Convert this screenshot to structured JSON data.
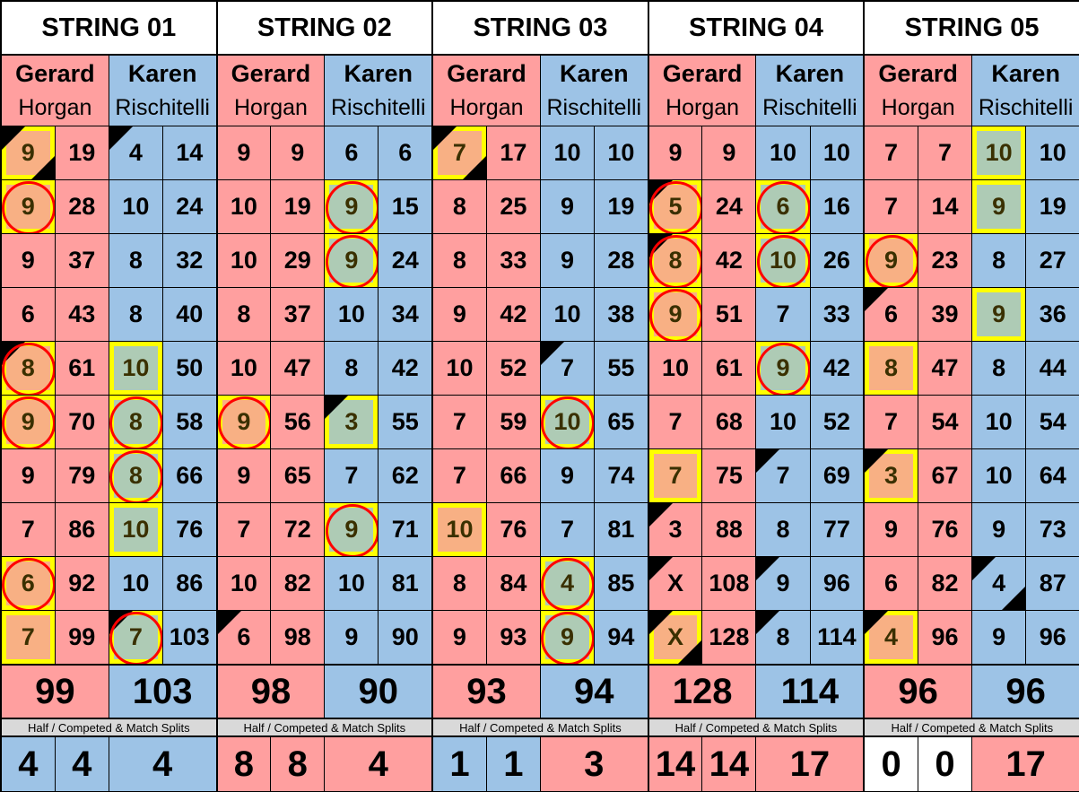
{
  "colors": {
    "player1": "#ff9f9f",
    "player2": "#9dc3e6",
    "highlight_border": "#ffff00",
    "highlight_fill_p1": "#f8b084",
    "highlight_fill_p2": "#aecbb5",
    "circle": "#ff0000"
  },
  "mark_legend": {
    "h": "yellow-highlight",
    "c": "red-circle",
    "t": "top-left-black-triangle",
    "b": "bottom-right-black-triangle"
  },
  "split_label": "Half / Competed & Match Splits",
  "strings": [
    {
      "title": "STRING 01",
      "p1": {
        "first": "Gerard",
        "last": "Horgan"
      },
      "p2": {
        "first": "Karen",
        "last": "Rischitelli"
      },
      "rows": [
        [
          {
            "v": "9",
            "m": "htb"
          },
          {
            "v": "19"
          },
          {
            "v": "4",
            "m": "t"
          },
          {
            "v": "14"
          }
        ],
        [
          {
            "v": "9",
            "m": "hc"
          },
          {
            "v": "28"
          },
          {
            "v": "10"
          },
          {
            "v": "24"
          }
        ],
        [
          {
            "v": "9"
          },
          {
            "v": "37"
          },
          {
            "v": "8"
          },
          {
            "v": "32"
          }
        ],
        [
          {
            "v": "6"
          },
          {
            "v": "43"
          },
          {
            "v": "8"
          },
          {
            "v": "40"
          }
        ],
        [
          {
            "v": "8",
            "m": "htc"
          },
          {
            "v": "61"
          },
          {
            "v": "10",
            "m": "h"
          },
          {
            "v": "50"
          }
        ],
        [
          {
            "v": "9",
            "m": "hc"
          },
          {
            "v": "70"
          },
          {
            "v": "8",
            "m": "hc"
          },
          {
            "v": "58"
          }
        ],
        [
          {
            "v": "9"
          },
          {
            "v": "79"
          },
          {
            "v": "8",
            "m": "hc"
          },
          {
            "v": "66"
          }
        ],
        [
          {
            "v": "7"
          },
          {
            "v": "86"
          },
          {
            "v": "10",
            "m": "h"
          },
          {
            "v": "76"
          }
        ],
        [
          {
            "v": "6",
            "m": "hc"
          },
          {
            "v": "92"
          },
          {
            "v": "10"
          },
          {
            "v": "86"
          }
        ],
        [
          {
            "v": "7",
            "m": "h"
          },
          {
            "v": "99"
          },
          {
            "v": "7",
            "m": "htc"
          },
          {
            "v": "103"
          }
        ]
      ],
      "totals": [
        "99",
        "103"
      ],
      "splits": [
        {
          "v": "4",
          "c": "b"
        },
        {
          "v": "4",
          "c": "b"
        },
        {
          "v": "4",
          "c": "b"
        }
      ]
    },
    {
      "title": "STRING 02",
      "p1": {
        "first": "Gerard",
        "last": "Horgan"
      },
      "p2": {
        "first": "Karen",
        "last": "Rischitelli"
      },
      "rows": [
        [
          {
            "v": "9"
          },
          {
            "v": "9"
          },
          {
            "v": "6"
          },
          {
            "v": "6"
          }
        ],
        [
          {
            "v": "10"
          },
          {
            "v": "19"
          },
          {
            "v": "9",
            "m": "hc"
          },
          {
            "v": "15"
          }
        ],
        [
          {
            "v": "10"
          },
          {
            "v": "29"
          },
          {
            "v": "9",
            "m": "hc"
          },
          {
            "v": "24"
          }
        ],
        [
          {
            "v": "8"
          },
          {
            "v": "37"
          },
          {
            "v": "10"
          },
          {
            "v": "34"
          }
        ],
        [
          {
            "v": "10"
          },
          {
            "v": "47"
          },
          {
            "v": "8"
          },
          {
            "v": "42"
          }
        ],
        [
          {
            "v": "9",
            "m": "hc"
          },
          {
            "v": "56"
          },
          {
            "v": "3",
            "m": "ht"
          },
          {
            "v": "55"
          }
        ],
        [
          {
            "v": "9"
          },
          {
            "v": "65"
          },
          {
            "v": "7"
          },
          {
            "v": "62"
          }
        ],
        [
          {
            "v": "7"
          },
          {
            "v": "72"
          },
          {
            "v": "9",
            "m": "hc"
          },
          {
            "v": "71"
          }
        ],
        [
          {
            "v": "10"
          },
          {
            "v": "82"
          },
          {
            "v": "10"
          },
          {
            "v": "81"
          }
        ],
        [
          {
            "v": "6",
            "m": "t"
          },
          {
            "v": "98"
          },
          {
            "v": "9"
          },
          {
            "v": "90"
          }
        ]
      ],
      "totals": [
        "98",
        "90"
      ],
      "splits": [
        {
          "v": "8",
          "c": "p"
        },
        {
          "v": "8",
          "c": "p"
        },
        {
          "v": "4",
          "c": "p"
        }
      ]
    },
    {
      "title": "STRING 03",
      "p1": {
        "first": "Gerard",
        "last": "Horgan"
      },
      "p2": {
        "first": "Karen",
        "last": "Rischitelli"
      },
      "rows": [
        [
          {
            "v": "7",
            "m": "htb"
          },
          {
            "v": "17"
          },
          {
            "v": "10"
          },
          {
            "v": "10"
          }
        ],
        [
          {
            "v": "8"
          },
          {
            "v": "25"
          },
          {
            "v": "9"
          },
          {
            "v": "19"
          }
        ],
        [
          {
            "v": "8"
          },
          {
            "v": "33"
          },
          {
            "v": "9"
          },
          {
            "v": "28"
          }
        ],
        [
          {
            "v": "9"
          },
          {
            "v": "42"
          },
          {
            "v": "10"
          },
          {
            "v": "38"
          }
        ],
        [
          {
            "v": "10"
          },
          {
            "v": "52"
          },
          {
            "v": "7",
            "m": "t"
          },
          {
            "v": "55"
          }
        ],
        [
          {
            "v": "7"
          },
          {
            "v": "59"
          },
          {
            "v": "10",
            "m": "hc"
          },
          {
            "v": "65"
          }
        ],
        [
          {
            "v": "7"
          },
          {
            "v": "66"
          },
          {
            "v": "9"
          },
          {
            "v": "74"
          }
        ],
        [
          {
            "v": "10",
            "m": "h"
          },
          {
            "v": "76"
          },
          {
            "v": "7"
          },
          {
            "v": "81"
          }
        ],
        [
          {
            "v": "8"
          },
          {
            "v": "84"
          },
          {
            "v": "4",
            "m": "hc"
          },
          {
            "v": "85"
          }
        ],
        [
          {
            "v": "9"
          },
          {
            "v": "93"
          },
          {
            "v": "9",
            "m": "hc"
          },
          {
            "v": "94"
          }
        ]
      ],
      "totals": [
        "93",
        "94"
      ],
      "splits": [
        {
          "v": "1",
          "c": "b"
        },
        {
          "v": "1",
          "c": "b"
        },
        {
          "v": "3",
          "c": "p"
        }
      ]
    },
    {
      "title": "STRING 04",
      "p1": {
        "first": "Gerard",
        "last": "Horgan"
      },
      "p2": {
        "first": "Karen",
        "last": "Rischitelli"
      },
      "rows": [
        [
          {
            "v": "9"
          },
          {
            "v": "9"
          },
          {
            "v": "10"
          },
          {
            "v": "10"
          }
        ],
        [
          {
            "v": "5",
            "m": "htc"
          },
          {
            "v": "24"
          },
          {
            "v": "6",
            "m": "hc"
          },
          {
            "v": "16"
          }
        ],
        [
          {
            "v": "8",
            "m": "htc"
          },
          {
            "v": "42"
          },
          {
            "v": "10",
            "m": "hc"
          },
          {
            "v": "26"
          }
        ],
        [
          {
            "v": "9",
            "m": "hc"
          },
          {
            "v": "51"
          },
          {
            "v": "7"
          },
          {
            "v": "33"
          }
        ],
        [
          {
            "v": "10"
          },
          {
            "v": "61"
          },
          {
            "v": "9",
            "m": "hc"
          },
          {
            "v": "42"
          }
        ],
        [
          {
            "v": "7"
          },
          {
            "v": "68"
          },
          {
            "v": "10"
          },
          {
            "v": "52"
          }
        ],
        [
          {
            "v": "7",
            "m": "h"
          },
          {
            "v": "75"
          },
          {
            "v": "7",
            "m": "t"
          },
          {
            "v": "69"
          }
        ],
        [
          {
            "v": "3",
            "m": "t"
          },
          {
            "v": "88"
          },
          {
            "v": "8"
          },
          {
            "v": "77"
          }
        ],
        [
          {
            "v": "X",
            "m": "t"
          },
          {
            "v": "108"
          },
          {
            "v": "9",
            "m": "t"
          },
          {
            "v": "96"
          }
        ],
        [
          {
            "v": "X",
            "m": "htb"
          },
          {
            "v": "128"
          },
          {
            "v": "8",
            "m": "t"
          },
          {
            "v": "114"
          }
        ]
      ],
      "totals": [
        "128",
        "114"
      ],
      "splits": [
        {
          "v": "14",
          "c": "p"
        },
        {
          "v": "14",
          "c": "p"
        },
        {
          "v": "17",
          "c": "p"
        }
      ]
    },
    {
      "title": "STRING 05",
      "p1": {
        "first": "Gerard",
        "last": "Horgan"
      },
      "p2": {
        "first": "Karen",
        "last": "Rischitelli"
      },
      "rows": [
        [
          {
            "v": "7"
          },
          {
            "v": "7"
          },
          {
            "v": "10",
            "m": "h"
          },
          {
            "v": "10"
          }
        ],
        [
          {
            "v": "7"
          },
          {
            "v": "14"
          },
          {
            "v": "9",
            "m": "h"
          },
          {
            "v": "19"
          }
        ],
        [
          {
            "v": "9",
            "m": "hc"
          },
          {
            "v": "23"
          },
          {
            "v": "8"
          },
          {
            "v": "27"
          }
        ],
        [
          {
            "v": "6",
            "m": "t"
          },
          {
            "v": "39"
          },
          {
            "v": "9",
            "m": "h"
          },
          {
            "v": "36"
          }
        ],
        [
          {
            "v": "8",
            "m": "h"
          },
          {
            "v": "47"
          },
          {
            "v": "8"
          },
          {
            "v": "44"
          }
        ],
        [
          {
            "v": "7"
          },
          {
            "v": "54"
          },
          {
            "v": "10"
          },
          {
            "v": "54"
          }
        ],
        [
          {
            "v": "3",
            "m": "ht"
          },
          {
            "v": "67"
          },
          {
            "v": "10"
          },
          {
            "v": "64"
          }
        ],
        [
          {
            "v": "9"
          },
          {
            "v": "76"
          },
          {
            "v": "9"
          },
          {
            "v": "73"
          }
        ],
        [
          {
            "v": "6"
          },
          {
            "v": "82"
          },
          {
            "v": "4",
            "m": "tb"
          },
          {
            "v": "87"
          }
        ],
        [
          {
            "v": "4",
            "m": "ht"
          },
          {
            "v": "96"
          },
          {
            "v": "9"
          },
          {
            "v": "96"
          }
        ]
      ],
      "totals": [
        "96",
        "96"
      ],
      "splits": [
        {
          "v": "0",
          "c": "w"
        },
        {
          "v": "0",
          "c": "w"
        },
        {
          "v": "17",
          "c": "p"
        }
      ]
    }
  ]
}
